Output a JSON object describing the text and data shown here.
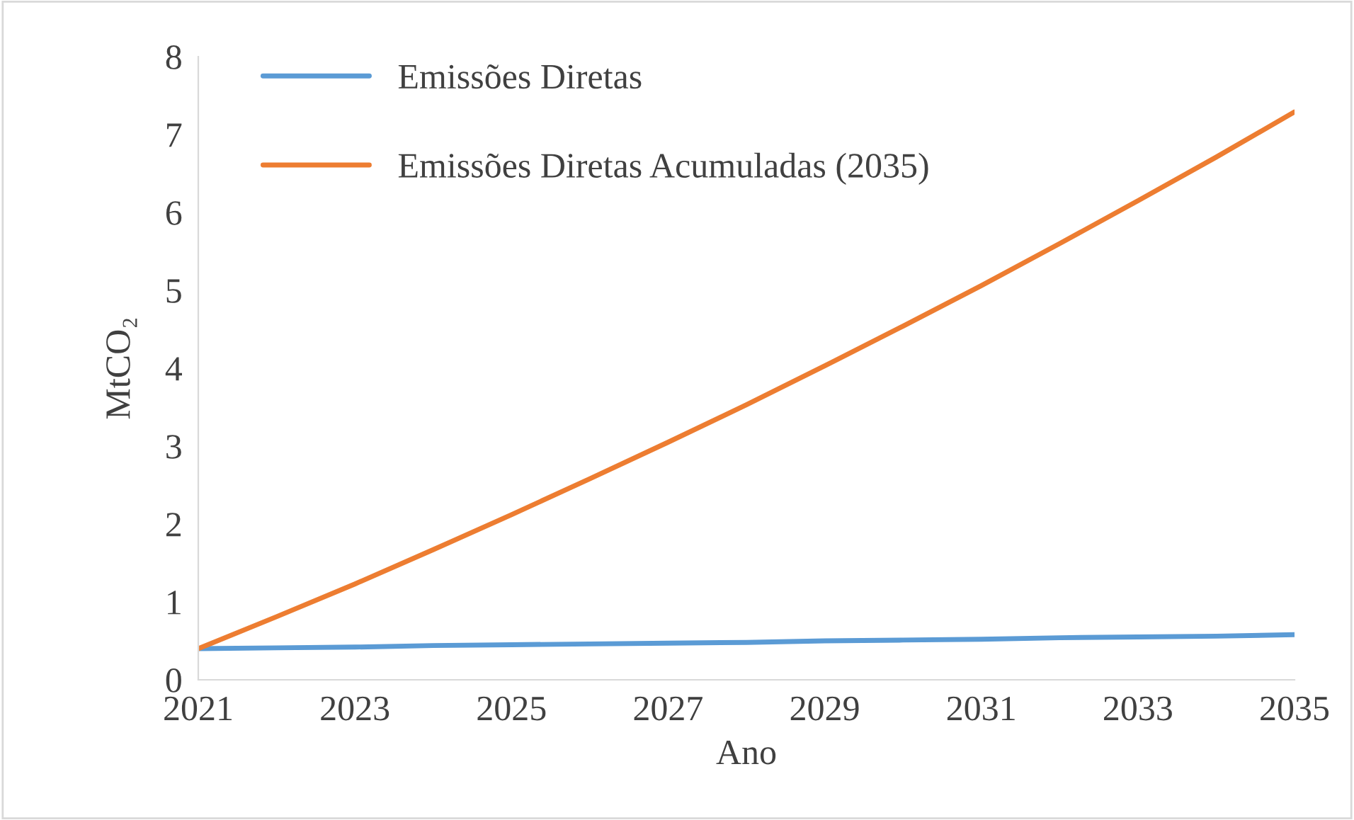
{
  "chart_data": {
    "type": "line",
    "xlabel": "Ano",
    "ylabel": "MtCO₂",
    "x": [
      2021,
      2022,
      2023,
      2024,
      2025,
      2026,
      2027,
      2028,
      2029,
      2030,
      2031,
      2032,
      2033,
      2034,
      2035
    ],
    "series": [
      {
        "name": "Emissões Diretas",
        "color": "#5b9bd5",
        "values": [
          0.4,
          0.41,
          0.42,
          0.44,
          0.45,
          0.46,
          0.47,
          0.48,
          0.5,
          0.51,
          0.52,
          0.54,
          0.55,
          0.56,
          0.58
        ]
      },
      {
        "name": "Emissões Diretas Acumuladas (2035)",
        "color": "#ed7d31",
        "values": [
          0.4,
          0.81,
          1.23,
          1.67,
          2.12,
          2.58,
          3.05,
          3.53,
          4.03,
          4.54,
          5.06,
          5.6,
          6.15,
          6.71,
          7.29
        ]
      }
    ],
    "xlim": [
      2021,
      2035
    ],
    "xticks": [
      2021,
      2023,
      2025,
      2027,
      2029,
      2031,
      2033,
      2035
    ],
    "ylim": [
      0,
      8
    ],
    "yticks": [
      0,
      1,
      2,
      3,
      4,
      5,
      6,
      7,
      8
    ],
    "grid": false,
    "legend": "top left",
    "marker": "none",
    "line_style": "solid"
  }
}
